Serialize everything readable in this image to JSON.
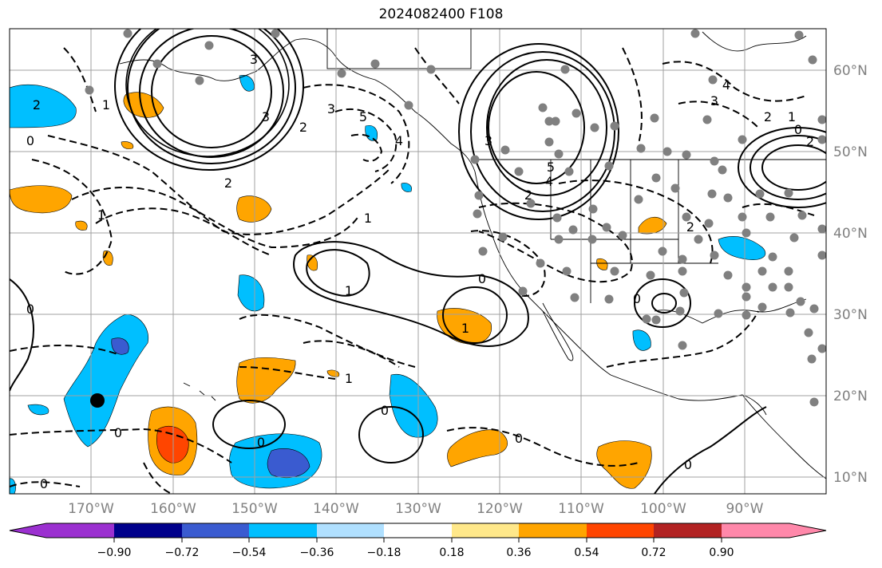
{
  "title": "2024082400 F108",
  "map": {
    "lon_range": [
      -180,
      -82
    ],
    "lat_range": [
      8,
      66
    ],
    "longitude_ticks": [
      "170°W",
      "160°W",
      "150°W",
      "140°W",
      "130°W",
      "120°W",
      "110°W",
      "100°W",
      "90°W"
    ],
    "latitude_ticks": [
      "60°N",
      "50°N",
      "40°N",
      "30°N",
      "20°N",
      "10°N"
    ],
    "grid": true,
    "contour_labels": [
      "2",
      "1",
      "0",
      "3",
      "2",
      "3",
      "2",
      "1",
      "5",
      "4",
      "3",
      "2",
      "1",
      "1",
      "0",
      "1",
      "0",
      "1",
      "0",
      "0",
      "0",
      "0",
      "0",
      "0",
      "3",
      "4",
      "2",
      "1",
      "0",
      "2",
      "2",
      "0",
      "3",
      "5",
      "4"
    ]
  },
  "colorbar": {
    "ticks": [
      "−0.90",
      "−0.72",
      "−0.54",
      "−0.36",
      "−0.18",
      "0.18",
      "0.36",
      "0.54",
      "0.72",
      "0.90"
    ],
    "colors": [
      "#9b30d0",
      "#00008b",
      "#3a5bd0",
      "#00bfff",
      "#b0e0ff",
      "#ffffff",
      "#ffe88a",
      "#ffa500",
      "#ff4500",
      "#b22222",
      "#ff88aa"
    ]
  }
}
